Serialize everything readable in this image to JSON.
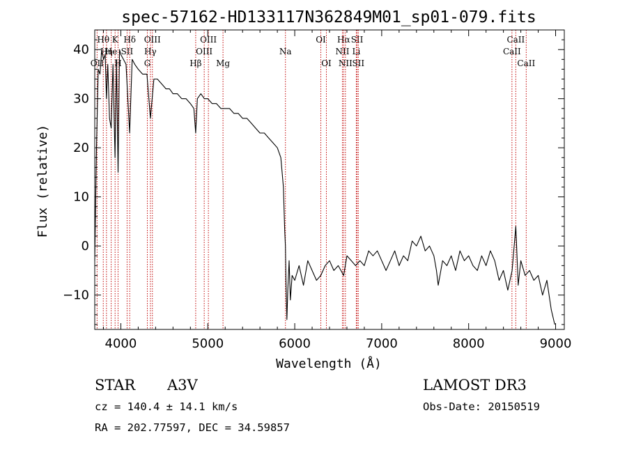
{
  "chart_data": {
    "type": "line",
    "title": "spec-57162-HD133117N362849M01_sp01-079.fits",
    "xlabel": "Wavelength (Å)",
    "ylabel": "Flux (relative)",
    "xlim": [
      3700,
      9100
    ],
    "ylim": [
      -17,
      44
    ],
    "x_ticks": [
      4000,
      5000,
      6000,
      7000,
      8000,
      9000
    ],
    "y_ticks": [
      -10,
      0,
      10,
      20,
      30,
      40
    ],
    "series": [
      {
        "name": "flux",
        "x": [
          3700,
          3720,
          3740,
          3760,
          3780,
          3800,
          3820,
          3835,
          3850,
          3870,
          3889,
          3910,
          3933,
          3950,
          3968,
          3985,
          4000,
          4030,
          4060,
          4101,
          4130,
          4160,
          4200,
          4250,
          4300,
          4340,
          4380,
          4420,
          4470,
          4520,
          4560,
          4600,
          4650,
          4700,
          4750,
          4800,
          4840,
          4861,
          4880,
          4920,
          4960,
          5000,
          5050,
          5100,
          5150,
          5200,
          5250,
          5300,
          5350,
          5400,
          5450,
          5500,
          5550,
          5600,
          5650,
          5700,
          5750,
          5800,
          5840,
          5870,
          5885,
          5893,
          5900,
          5910,
          5920,
          5935,
          5950,
          5970,
          6000,
          6050,
          6100,
          6150,
          6200,
          6250,
          6300,
          6350,
          6400,
          6450,
          6500,
          6563,
          6600,
          6650,
          6700,
          6750,
          6800,
          6850,
          6900,
          6950,
          7000,
          7050,
          7100,
          7150,
          7200,
          7250,
          7300,
          7350,
          7400,
          7450,
          7500,
          7550,
          7600,
          7630,
          7650,
          7700,
          7750,
          7800,
          7850,
          7900,
          7950,
          8000,
          8050,
          8100,
          8150,
          8200,
          8250,
          8300,
          8350,
          8400,
          8450,
          8500,
          8542,
          8570,
          8600,
          8650,
          8700,
          8750,
          8800,
          8850,
          8900,
          8950,
          8990
        ],
        "y": [
          -3,
          20,
          36,
          35,
          40,
          38,
          39,
          30,
          37,
          26,
          24,
          37,
          18,
          38,
          15,
          40,
          39,
          38,
          37,
          23,
          38,
          37,
          36,
          35,
          35,
          26,
          34,
          34,
          33,
          32,
          32,
          31,
          31,
          30,
          30,
          29,
          28,
          23,
          30,
          31,
          30,
          30,
          29,
          29,
          28,
          28,
          28,
          27,
          27,
          26,
          26,
          25,
          24,
          23,
          23,
          22,
          21,
          20,
          18,
          12,
          3,
          0,
          -8,
          -15,
          -9,
          -3,
          -11,
          -6,
          -7,
          -4,
          -8,
          -3,
          -5,
          -7,
          -6,
          -4,
          -3,
          -5,
          -4,
          -6,
          -2,
          -3,
          -4,
          -3,
          -4,
          -1,
          -2,
          -1,
          -3,
          -5,
          -3,
          -1,
          -4,
          -2,
          -3,
          1,
          0,
          2,
          -1,
          0,
          -2,
          -5,
          -8,
          -3,
          -4,
          -2,
          -5,
          -1,
          -3,
          -2,
          -4,
          -5,
          -2,
          -4,
          -1,
          -3,
          -7,
          -5,
          -9,
          -5,
          4,
          -8,
          -3,
          -6,
          -5,
          -7,
          -6,
          -10,
          -7,
          -13,
          -16
        ]
      }
    ],
    "line_markers": [
      {
        "label": "Hθ",
        "wavelength": 3798,
        "row": 1
      },
      {
        "label": "Hη",
        "wavelength": 3835,
        "row": 2
      },
      {
        "label": "OII",
        "wavelength": 3727,
        "row": 3
      },
      {
        "label": "He",
        "wavelength": 3889,
        "row": 2
      },
      {
        "label": "K",
        "wavelength": 3934,
        "row": 1
      },
      {
        "label": "H",
        "wavelength": 3968,
        "row": 3
      },
      {
        "label": "SII",
        "wavelength": 4072,
        "row": 2
      },
      {
        "label": "Hδ",
        "wavelength": 4102,
        "row": 1
      },
      {
        "label": "OIII",
        "wavelength": 4363,
        "row": 1
      },
      {
        "label": "Hγ",
        "wavelength": 4340,
        "row": 2
      },
      {
        "label": "G",
        "wavelength": 4305,
        "row": 3
      },
      {
        "label": "Hβ",
        "wavelength": 4861,
        "row": 3
      },
      {
        "label": "OIII",
        "wavelength": 5007,
        "row": 1
      },
      {
        "label": "OIII",
        "wavelength": 4959,
        "row": 2
      },
      {
        "label": "Mg",
        "wavelength": 5175,
        "row": 3
      },
      {
        "label": "Na",
        "wavelength": 5893,
        "row": 2
      },
      {
        "label": "OI",
        "wavelength": 6300,
        "row": 1
      },
      {
        "label": "OI",
        "wavelength": 6364,
        "row": 3
      },
      {
        "label": "Hα",
        "wavelength": 6563,
        "row": 1
      },
      {
        "label": "NII",
        "wavelength": 6548,
        "row": 2
      },
      {
        "label": "NII",
        "wavelength": 6583,
        "row": 3
      },
      {
        "label": "SII",
        "wavelength": 6717,
        "row": 1
      },
      {
        "label": "Li",
        "wavelength": 6708,
        "row": 2
      },
      {
        "label": "SII",
        "wavelength": 6731,
        "row": 3
      },
      {
        "label": "CaII",
        "wavelength": 8542,
        "row": 1
      },
      {
        "label": "CaII",
        "wavelength": 8498,
        "row": 2
      },
      {
        "label": "CaII",
        "wavelength": 8662,
        "row": 3
      }
    ]
  },
  "info": {
    "class": "STAR",
    "subclass": "A3V",
    "survey": "LAMOST DR3",
    "cz": "cz = 140.4 ± 14.1 km/s",
    "obs_date": "Obs-Date: 20150519",
    "radec": "RA = 202.77597, DEC =  34.59857"
  }
}
